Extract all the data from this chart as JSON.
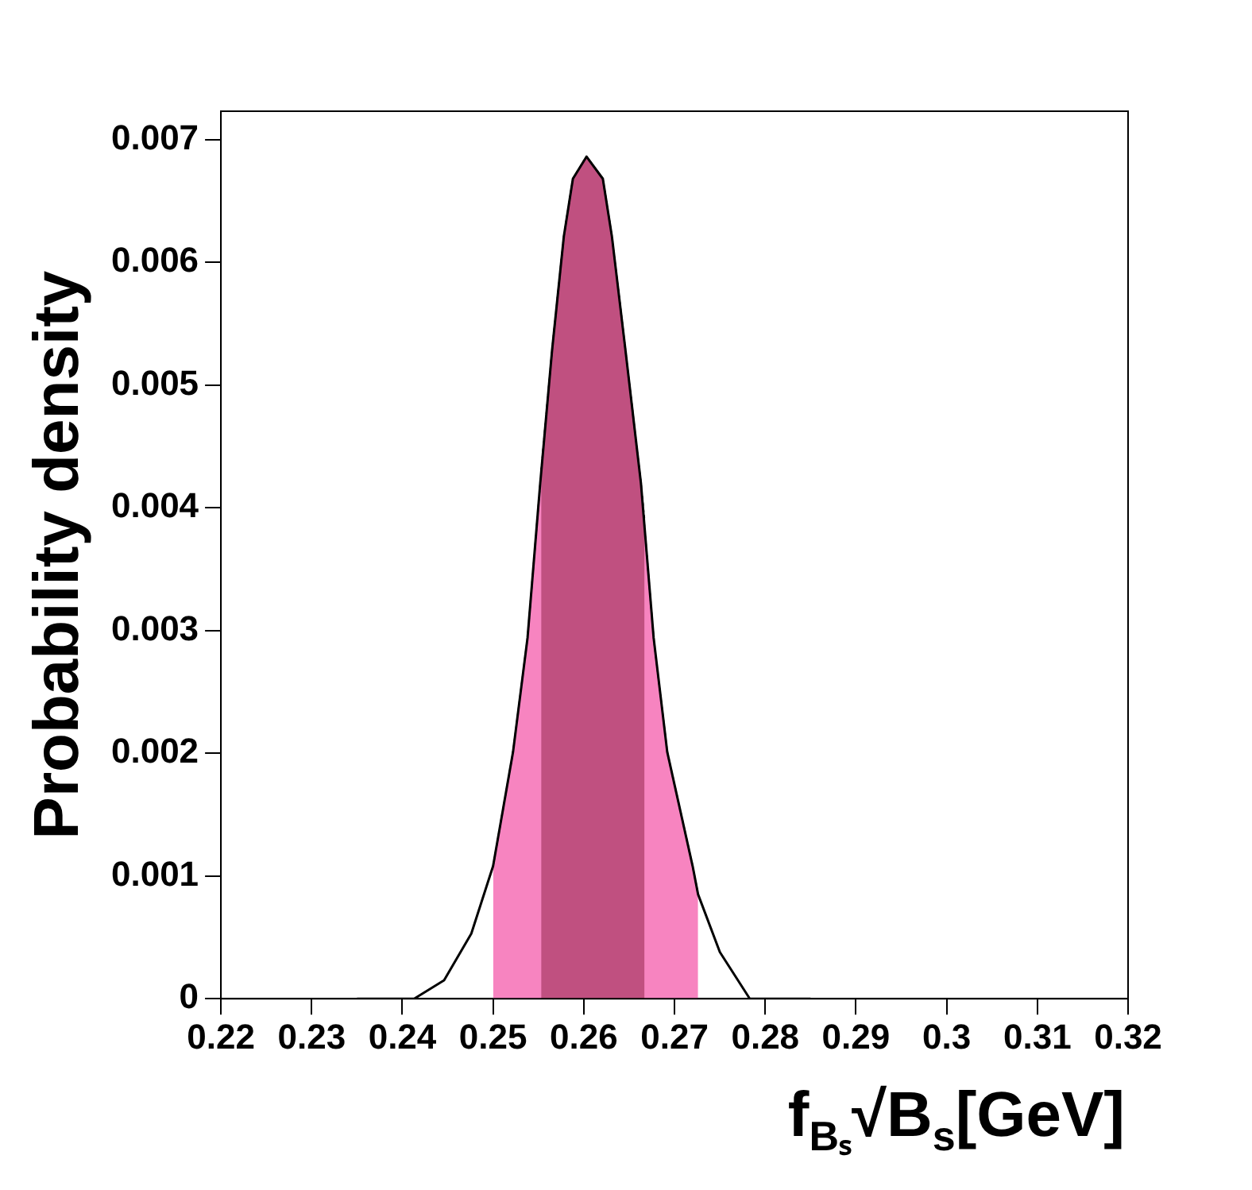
{
  "chart_data": {
    "type": "line",
    "ylabel": "Probability density",
    "xlabel": "f$_{Bₛ}$√B$_{s}$[GeV]",
    "xlim": [
      0.22,
      0.32
    ],
    "ylim": [
      0,
      0.00723
    ],
    "xticks": [
      0.22,
      0.23,
      0.24,
      0.25,
      0.26,
      0.27,
      0.28,
      0.29,
      0.3,
      0.31,
      0.32
    ],
    "yticks": [
      0,
      0.001,
      0.002,
      0.003,
      0.004,
      0.005,
      0.006,
      0.007
    ],
    "grid": false,
    "legend": false,
    "marker": "none",
    "series": [
      {
        "type": "area",
        "color": "#f784c0",
        "line_style": "dotted",
        "x": [
          0.25,
          0.2522,
          0.2538,
          0.2552,
          0.2565,
          0.2578,
          0.2588,
          0.2603,
          0.2621,
          0.2631,
          0.2646,
          0.2663,
          0.2677,
          0.2692,
          0.272,
          0.2726
        ],
        "values": [
          0.00108,
          0.00201,
          0.00294,
          0.0042,
          0.00528,
          0.00621,
          0.00668,
          0.00686,
          0.00668,
          0.00621,
          0.00528,
          0.0042,
          0.00294,
          0.00201,
          0.00108,
          0.00085
        ]
      },
      {
        "type": "area",
        "color": "#c05080",
        "line_style": "dotted",
        "x": [
          0.2553,
          0.2565,
          0.2578,
          0.2588,
          0.2603,
          0.2621,
          0.2631,
          0.2646,
          0.2663,
          0.2667
        ],
        "values": [
          0.0043,
          0.00528,
          0.00621,
          0.00668,
          0.00686,
          0.00668,
          0.00621,
          0.00528,
          0.0042,
          0.0039
        ]
      },
      {
        "type": "line",
        "color": "#000000",
        "line_style": "solid",
        "x": [
          0.235,
          0.2413,
          0.2446,
          0.2476,
          0.25,
          0.2522,
          0.2538,
          0.2552,
          0.2565,
          0.2578,
          0.2588,
          0.2603,
          0.2621,
          0.2631,
          0.2646,
          0.2663,
          0.2677,
          0.2692,
          0.272,
          0.2726,
          0.275,
          0.2783,
          0.285
        ],
        "values": [
          0,
          0,
          0.00015,
          0.00053,
          0.00108,
          0.00201,
          0.00294,
          0.0042,
          0.00528,
          0.00621,
          0.00668,
          0.00686,
          0.00668,
          0.00621,
          0.00528,
          0.0042,
          0.00294,
          0.00201,
          0.00108,
          0.00085,
          0.00038,
          0,
          0
        ]
      }
    ]
  }
}
